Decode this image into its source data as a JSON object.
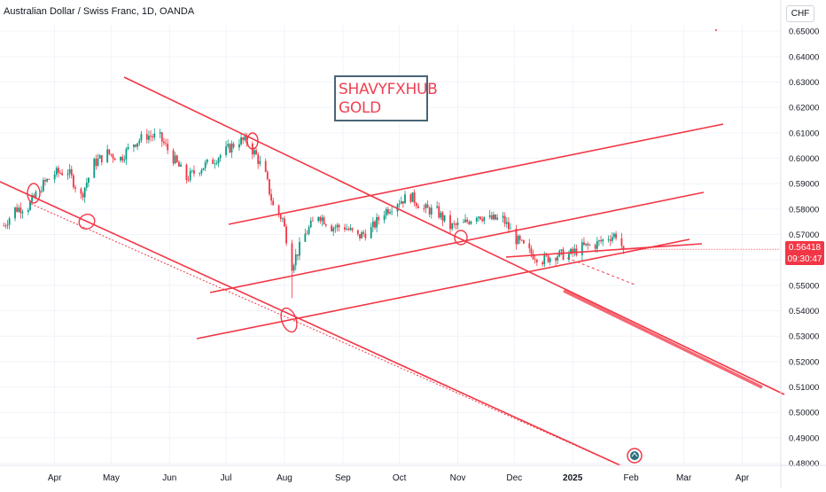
{
  "header": {
    "title": "Australian Dollar / Swiss Franc, 1D, OANDA"
  },
  "currency_badge": "CHF",
  "watermark": {
    "line1": "SHAVYFXHUB",
    "line2": "GOLD"
  },
  "last_price": {
    "value": "0.56418",
    "countdown": "09:30:47"
  },
  "colors": {
    "up": "#089981",
    "down": "#f23645",
    "drawing": "#f23645",
    "axis_text": "#131722",
    "grid": "#f0f3fa"
  },
  "chart_data": {
    "type": "candlestick",
    "title": "Australian Dollar / Swiss Franc, 1D, OANDA",
    "x_tick_labels": [
      "Apr",
      "May",
      "Jun",
      "Jul",
      "Aug",
      "Sep",
      "Oct",
      "Nov",
      "Dec",
      "2025",
      "Feb",
      "Mar",
      "Apr"
    ],
    "y_tick_labels": [
      "0.65000",
      "0.64000",
      "0.63000",
      "0.62000",
      "0.61000",
      "0.60000",
      "0.59000",
      "0.58000",
      "0.57000",
      "0.56000",
      "0.55000",
      "0.54000",
      "0.53000",
      "0.52000",
      "0.51000",
      "0.50000",
      "0.49000",
      "0.48000"
    ],
    "ylim": [
      0.4795,
      0.6525
    ],
    "x_range": [
      "2024-03-03",
      "2025-04-21"
    ],
    "last_close": 0.56418,
    "price_path": [
      [
        "2024-03-05",
        0.5735
      ],
      [
        "2024-03-11",
        0.58
      ],
      [
        "2024-03-18",
        0.581
      ],
      [
        "2024-03-25",
        0.589
      ],
      [
        "2024-04-01",
        0.594
      ],
      [
        "2024-04-08",
        0.595
      ],
      [
        "2024-04-15",
        0.585
      ],
      [
        "2024-04-22",
        0.598
      ],
      [
        "2024-04-29",
        0.602
      ],
      [
        "2024-05-06",
        0.6
      ],
      [
        "2024-05-13",
        0.606
      ],
      [
        "2024-05-20",
        0.609
      ],
      [
        "2024-05-27",
        0.608
      ],
      [
        "2024-06-03",
        0.6
      ],
      [
        "2024-06-10",
        0.592
      ],
      [
        "2024-06-17",
        0.596
      ],
      [
        "2024-06-24",
        0.599
      ],
      [
        "2024-07-01",
        0.603
      ],
      [
        "2024-07-08",
        0.607
      ],
      [
        "2024-07-12",
        0.6065
      ],
      [
        "2024-07-17",
        0.601
      ],
      [
        "2024-07-22",
        0.593
      ],
      [
        "2024-07-26",
        0.581
      ],
      [
        "2024-07-31",
        0.576
      ],
      [
        "2024-08-05",
        0.558
      ],
      [
        "2024-08-12",
        0.57
      ],
      [
        "2024-08-19",
        0.578
      ],
      [
        "2024-08-26",
        0.573
      ],
      [
        "2024-09-02",
        0.573
      ],
      [
        "2024-09-09",
        0.569
      ],
      [
        "2024-09-16",
        0.572
      ],
      [
        "2024-09-23",
        0.579
      ],
      [
        "2024-09-30",
        0.583
      ],
      [
        "2024-10-07",
        0.585
      ],
      [
        "2024-10-14",
        0.58
      ],
      [
        "2024-10-21",
        0.579
      ],
      [
        "2024-10-28",
        0.573
      ],
      [
        "2024-11-04",
        0.574
      ],
      [
        "2024-11-11",
        0.578
      ],
      [
        "2024-11-18",
        0.576
      ],
      [
        "2024-11-25",
        0.576
      ],
      [
        "2024-12-02",
        0.568
      ],
      [
        "2024-12-09",
        0.563
      ],
      [
        "2024-12-16",
        0.56
      ],
      [
        "2024-12-23",
        0.562
      ],
      [
        "2024-12-30",
        0.562
      ],
      [
        "2025-01-06",
        0.565
      ],
      [
        "2025-01-13",
        0.566
      ],
      [
        "2025-01-20",
        0.569
      ],
      [
        "2025-01-24",
        0.57
      ],
      [
        "2025-01-28",
        0.5642
      ]
    ]
  }
}
